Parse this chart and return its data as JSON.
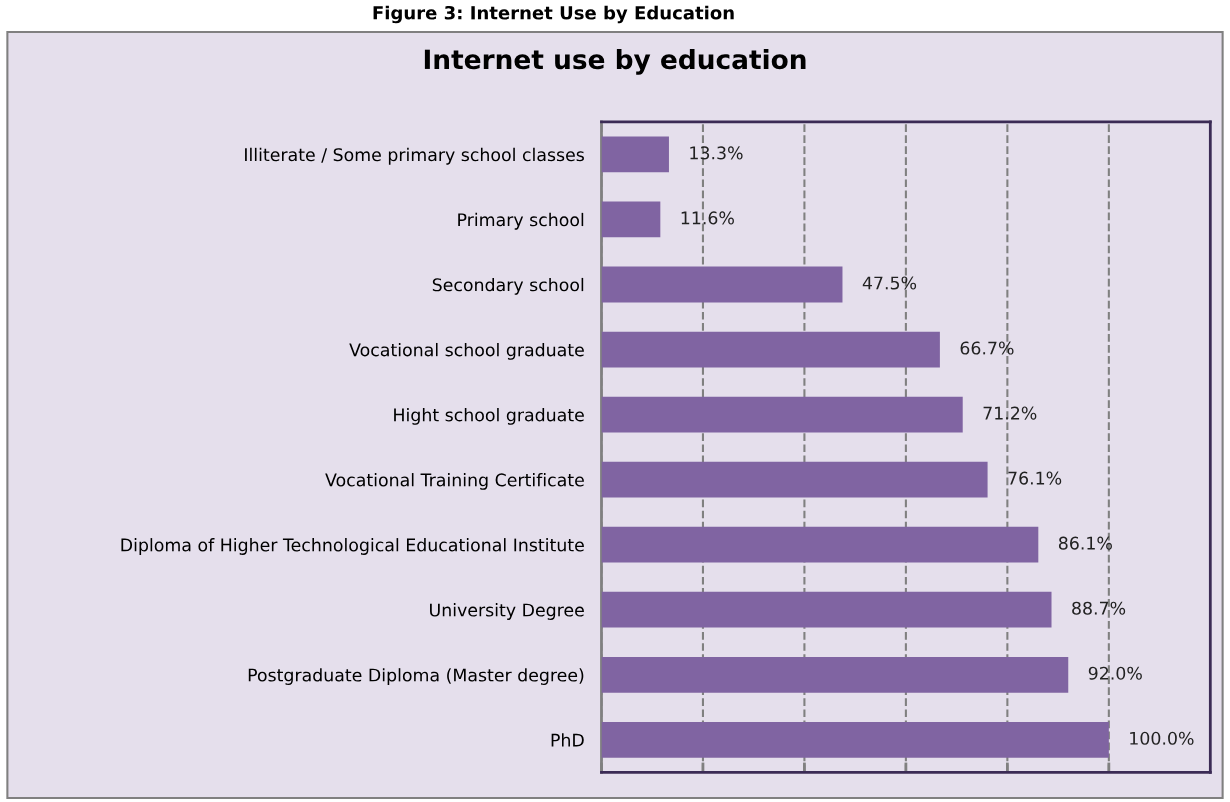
{
  "chart_data": {
    "type": "bar",
    "orientation": "horizontal",
    "title": "Internet use by education",
    "annotations": [
      "Figure 3: Internet Use by Education"
    ],
    "categories": [
      "Illiterate / Some primary school classes",
      "Primary school",
      "Secondary school",
      "Vocational school graduate",
      "Hight school graduate",
      "Vocational Training Certificate",
      "Diploma of Higher Technological Educational Institute",
      "University Degree",
      "Postgraduate Diploma (Master degree)",
      "PhD"
    ],
    "values": [
      13.3,
      11.6,
      47.5,
      66.7,
      71.2,
      76.1,
      86.1,
      88.7,
      92.0,
      100.0
    ],
    "value_labels": [
      "13.3%",
      "11.6%",
      "47.5%",
      "66.7%",
      "71.2%",
      "76.1%",
      "86.1%",
      "88.7%",
      "92.0%",
      "100.0%"
    ],
    "color": "#8064a2",
    "xlim": [
      0,
      120
    ],
    "xticks": [
      {
        "value": 0,
        "label": null
      },
      {
        "value": 20,
        "label": null
      },
      {
        "value": 40,
        "label": null
      },
      {
        "value": 60,
        "label": null
      },
      {
        "value": 80,
        "label": null
      },
      {
        "value": 100,
        "label": null
      }
    ],
    "tick_labels": "y",
    "grid": "x",
    "legend": false
  }
}
